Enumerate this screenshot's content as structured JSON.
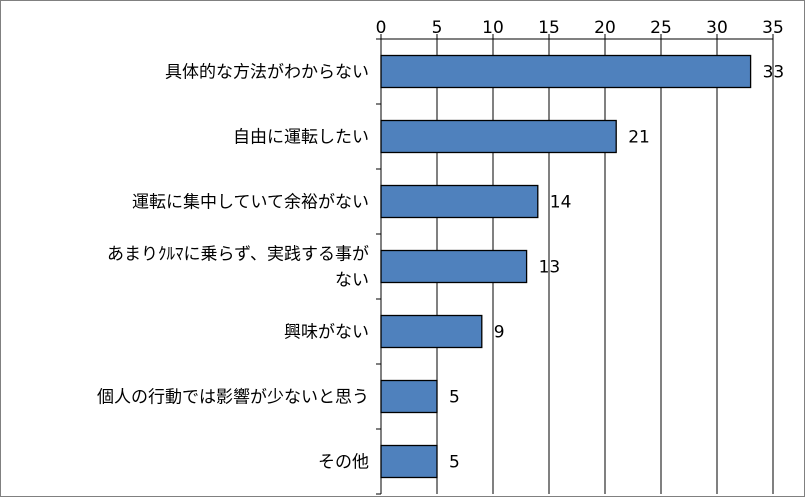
{
  "chart_data": {
    "type": "bar",
    "orientation": "horizontal",
    "categories": [
      "具体的な方法がわからない",
      "自由に運転したい",
      "運転に集中していて余裕がない",
      "あまりクルマに乗らず、実践する事がない",
      "興味がない",
      "個人の行動では影響が少ないと思う",
      "その他"
    ],
    "category_lines": [
      [
        "具体的な方法がわからない"
      ],
      [
        "自由に運転したい"
      ],
      [
        "運転に集中していて余裕がない"
      ],
      [
        "あまりｸﾙﾏに乗らず、実践する事が",
        "ない"
      ],
      [
        "興味がない"
      ],
      [
        "個人の行動では影響が少ないと思う"
      ],
      [
        "その他"
      ]
    ],
    "values": [
      33,
      21,
      14,
      13,
      9,
      5,
      5
    ],
    "data_labels": [
      "33",
      "21",
      "14",
      "13",
      "9",
      "5",
      "5"
    ],
    "xlim": [
      0,
      35
    ],
    "ticks": [
      0,
      5,
      10,
      15,
      20,
      25,
      30,
      35
    ],
    "tick_labels": [
      "0",
      "5",
      "10",
      "15",
      "20",
      "25",
      "30",
      "35"
    ],
    "axis_position": "top",
    "grid": true,
    "bar_color": "#4f81bd",
    "bar_edge_color": "#000000",
    "grid_color": "#000000"
  }
}
